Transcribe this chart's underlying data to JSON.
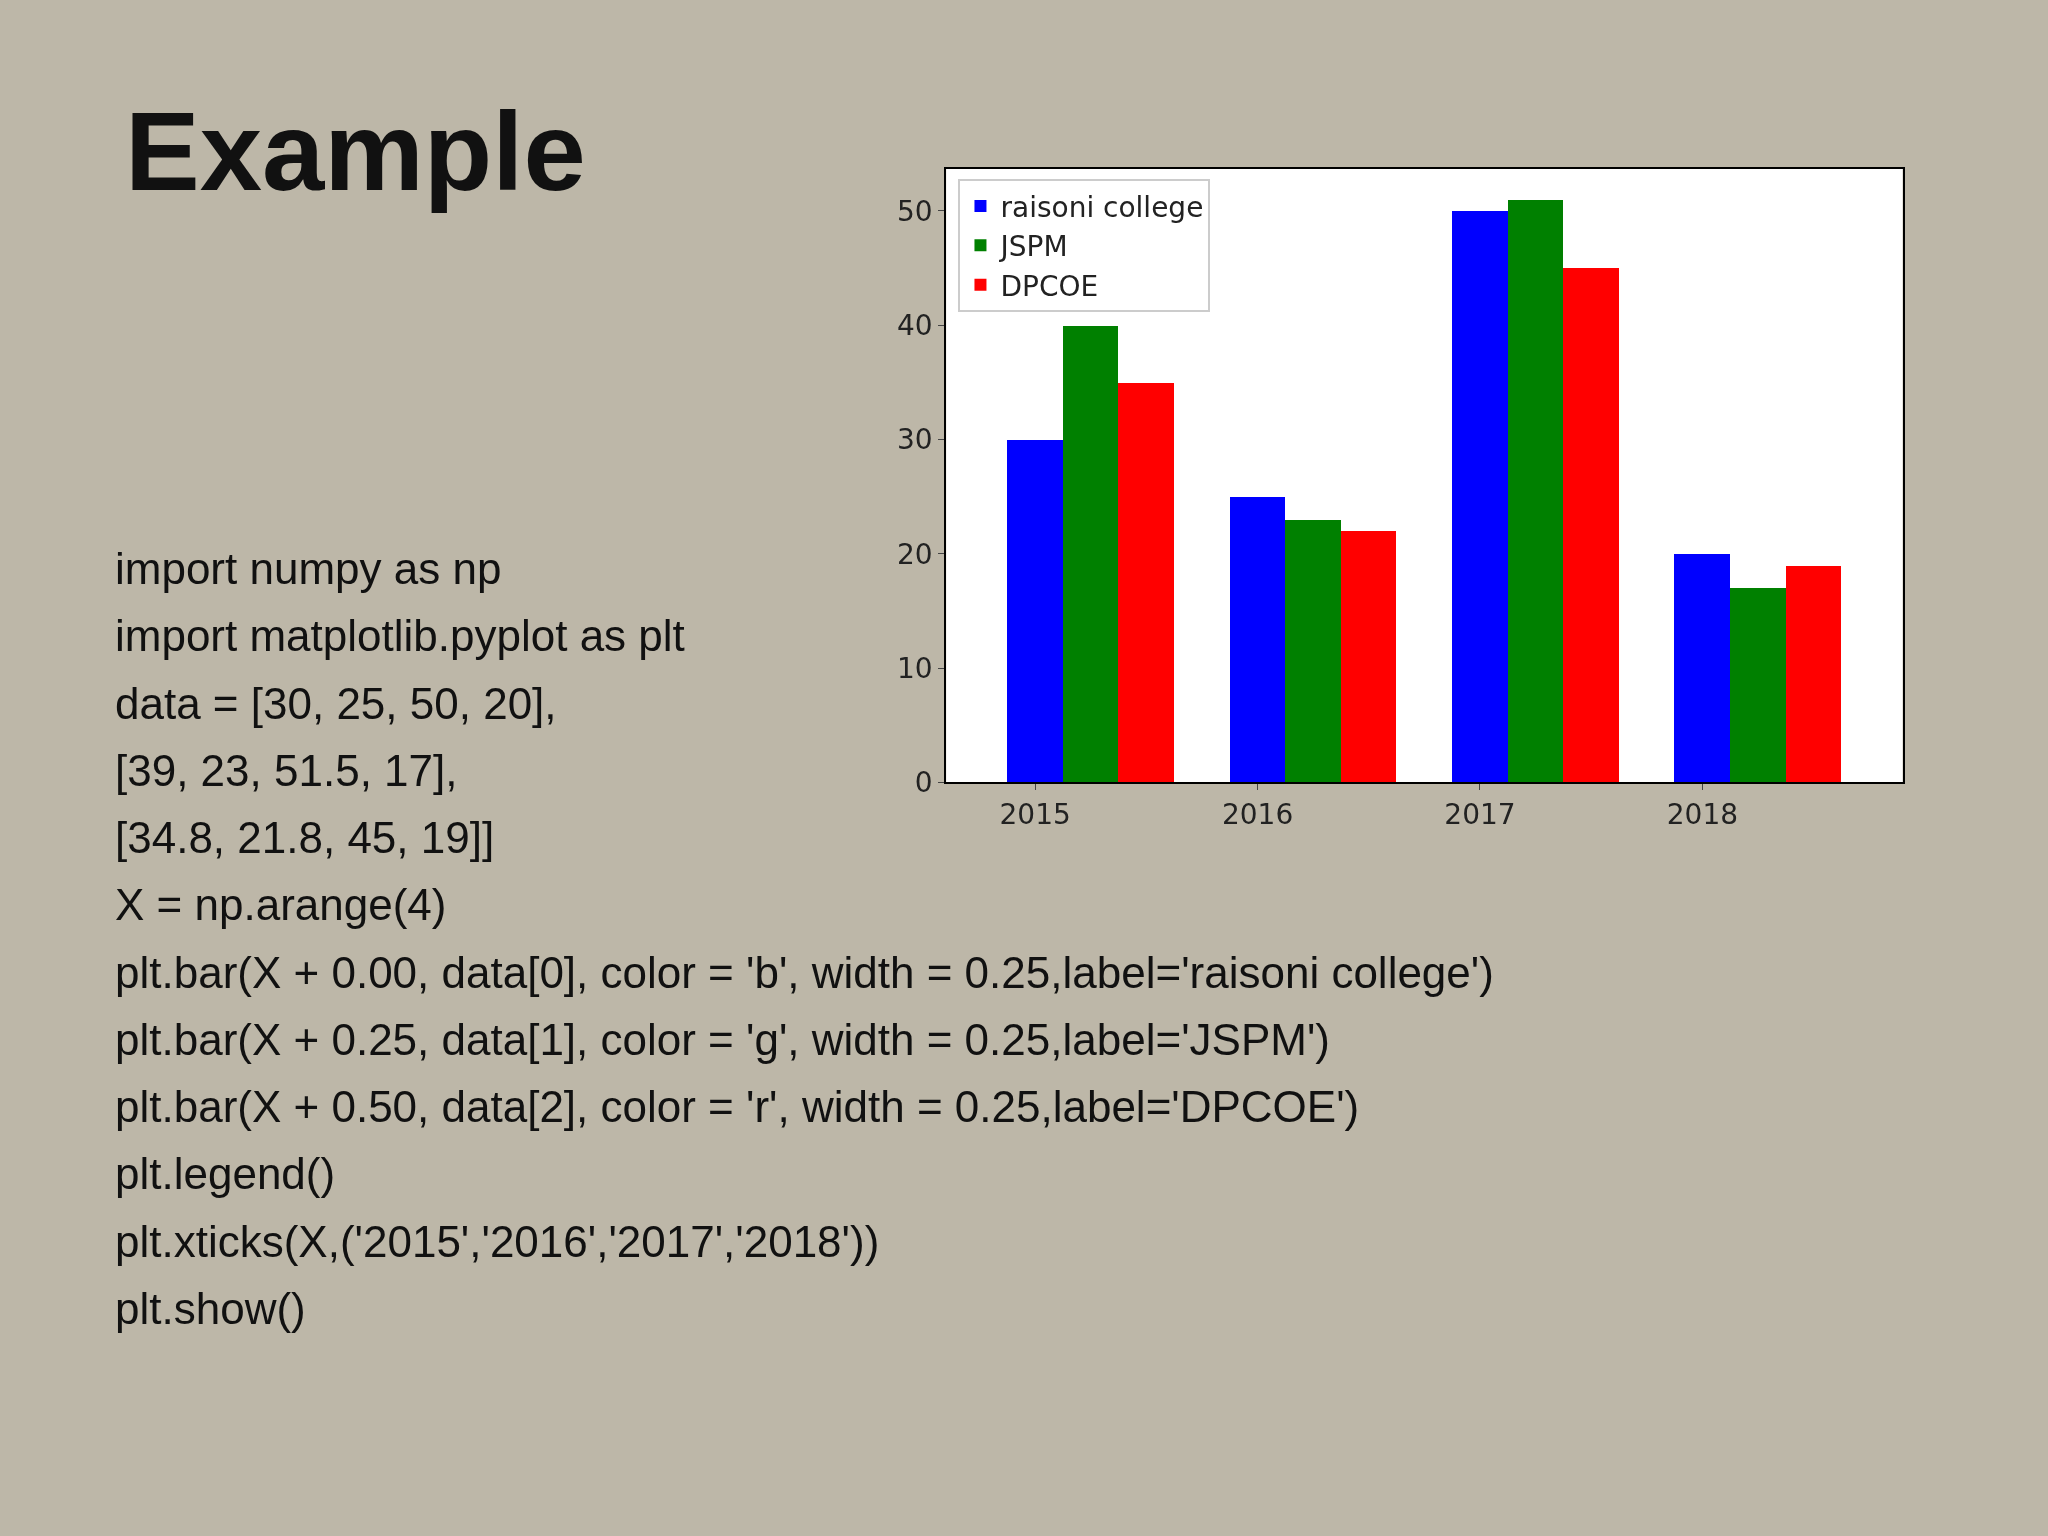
{
  "chart_data": {
    "type": "bar",
    "title": "Example",
    "categories": [
      "2015",
      "2016",
      "2017",
      "2018"
    ],
    "series": [
      {
        "name": "raisoni college",
        "color": "#0000ff",
        "values": [
          30,
          25,
          50,
          20
        ]
      },
      {
        "name": "JSPM",
        "color": "#008000",
        "values": [
          40,
          23,
          51,
          17
        ]
      },
      {
        "name": "DPCOE",
        "color": "#ff0000",
        "values": [
          35,
          22,
          45,
          19
        ]
      }
    ],
    "ylim": [
      0,
      53.7
    ],
    "yticks": [
      0,
      10,
      20,
      30,
      40,
      50
    ],
    "grid": false,
    "legend": "top left",
    "annotations": [
      "import numpy as np",
      "import matplotlib.pyplot as plt",
      "data = [30, 25, 50, 20],",
      "[39, 23, 51.5, 17],",
      "[34.8, 21.8, 45, 19]]",
      "X = np.arange(4)",
      "plt.bar(X + 0.00, data[0], color = 'b', width = 0.25,label='raisoni college')",
      "plt.bar(X + 0.25, data[1], color = 'g', width = 0.25,label='JSPM')",
      "plt.bar(X + 0.50, data[2], color = 'r', width = 0.25,label='DPCOE')",
      "plt.legend()",
      "plt.xticks(X,('2015','2016','2017','2018'))",
      "plt.show()"
    ]
  }
}
